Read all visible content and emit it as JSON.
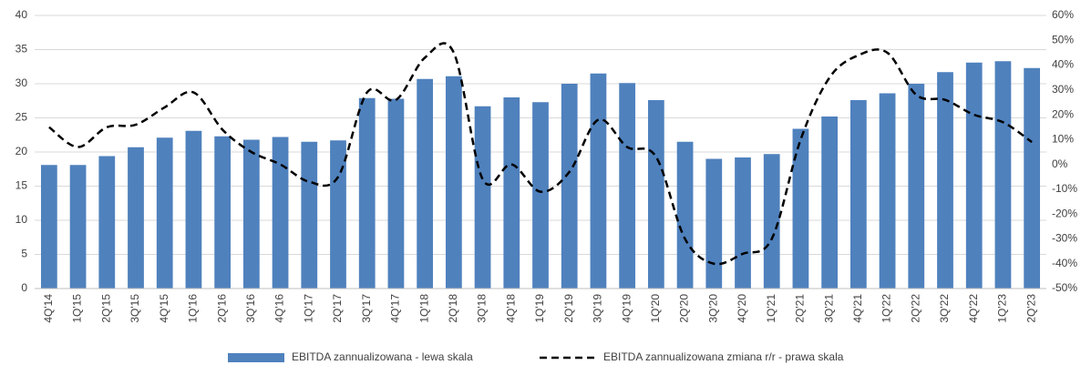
{
  "chart_data": {
    "type": "bar-line",
    "categories": [
      "4Q'14",
      "1Q'15",
      "2Q'15",
      "3Q'15",
      "4Q'15",
      "1Q'16",
      "2Q'16",
      "3Q'16",
      "4Q'16",
      "1Q'17",
      "2Q'17",
      "3Q'17",
      "4Q'17",
      "1Q'18",
      "2Q'18",
      "3Q'18",
      "4Q'18",
      "1Q'19",
      "2Q'19",
      "3Q'19",
      "4Q'19",
      "1Q'20",
      "2Q'20",
      "3Q'20",
      "4Q'20",
      "1Q'21",
      "2Q'21",
      "3Q'21",
      "4Q'21",
      "1Q'22",
      "2Q'22",
      "3Q'22",
      "4Q'22",
      "1Q'23",
      "2Q'23"
    ],
    "series": [
      {
        "name": "EBITDA zannualizowana - lewa skala",
        "type": "bar",
        "color": "#4f81bd",
        "values": [
          18.1,
          18.1,
          19.4,
          20.7,
          22.1,
          23.1,
          22.3,
          21.8,
          22.2,
          21.5,
          21.7,
          27.9,
          27.8,
          30.7,
          31.1,
          26.7,
          28.0,
          27.3,
          30.0,
          31.5,
          30.1,
          27.6,
          21.5,
          19.0,
          19.2,
          19.7,
          23.4,
          25.2,
          27.6,
          28.6,
          30.0,
          31.7,
          33.1,
          33.3,
          32.3
        ]
      },
      {
        "name": "EBITDA zannualizowana zmiana r/r - prawa skala",
        "type": "line",
        "axis": "y2",
        "color": "#000000",
        "values": [
          15,
          7,
          15,
          16,
          23,
          29,
          14,
          5,
          0,
          -7,
          -5,
          29,
          26,
          43,
          45,
          -6,
          0,
          -11,
          -3,
          18,
          7,
          3,
          -30,
          -40,
          -36,
          -30,
          10,
          35,
          44,
          45,
          28,
          26,
          20,
          17,
          9
        ]
      }
    ],
    "ylim": [
      0,
      40
    ],
    "yticks": [
      0,
      5,
      10,
      15,
      20,
      25,
      30,
      35,
      40
    ],
    "y2lim": [
      -50,
      60
    ],
    "y2ticks": [
      {
        "value": -50,
        "label": "-50%"
      },
      {
        "value": -40,
        "label": "-40%"
      },
      {
        "value": -30,
        "label": "-30%"
      },
      {
        "value": -20,
        "label": "-20%"
      },
      {
        "value": -10,
        "label": "-10%"
      },
      {
        "value": 0,
        "label": "0%"
      },
      {
        "value": 10,
        "label": "10%"
      },
      {
        "value": 20,
        "label": "20%"
      },
      {
        "value": 30,
        "label": "30%"
      },
      {
        "value": 40,
        "label": "40%"
      },
      {
        "value": 50,
        "label": "50%"
      },
      {
        "value": 60,
        "label": "60%"
      }
    ],
    "grid": true,
    "legend": "bottom"
  }
}
